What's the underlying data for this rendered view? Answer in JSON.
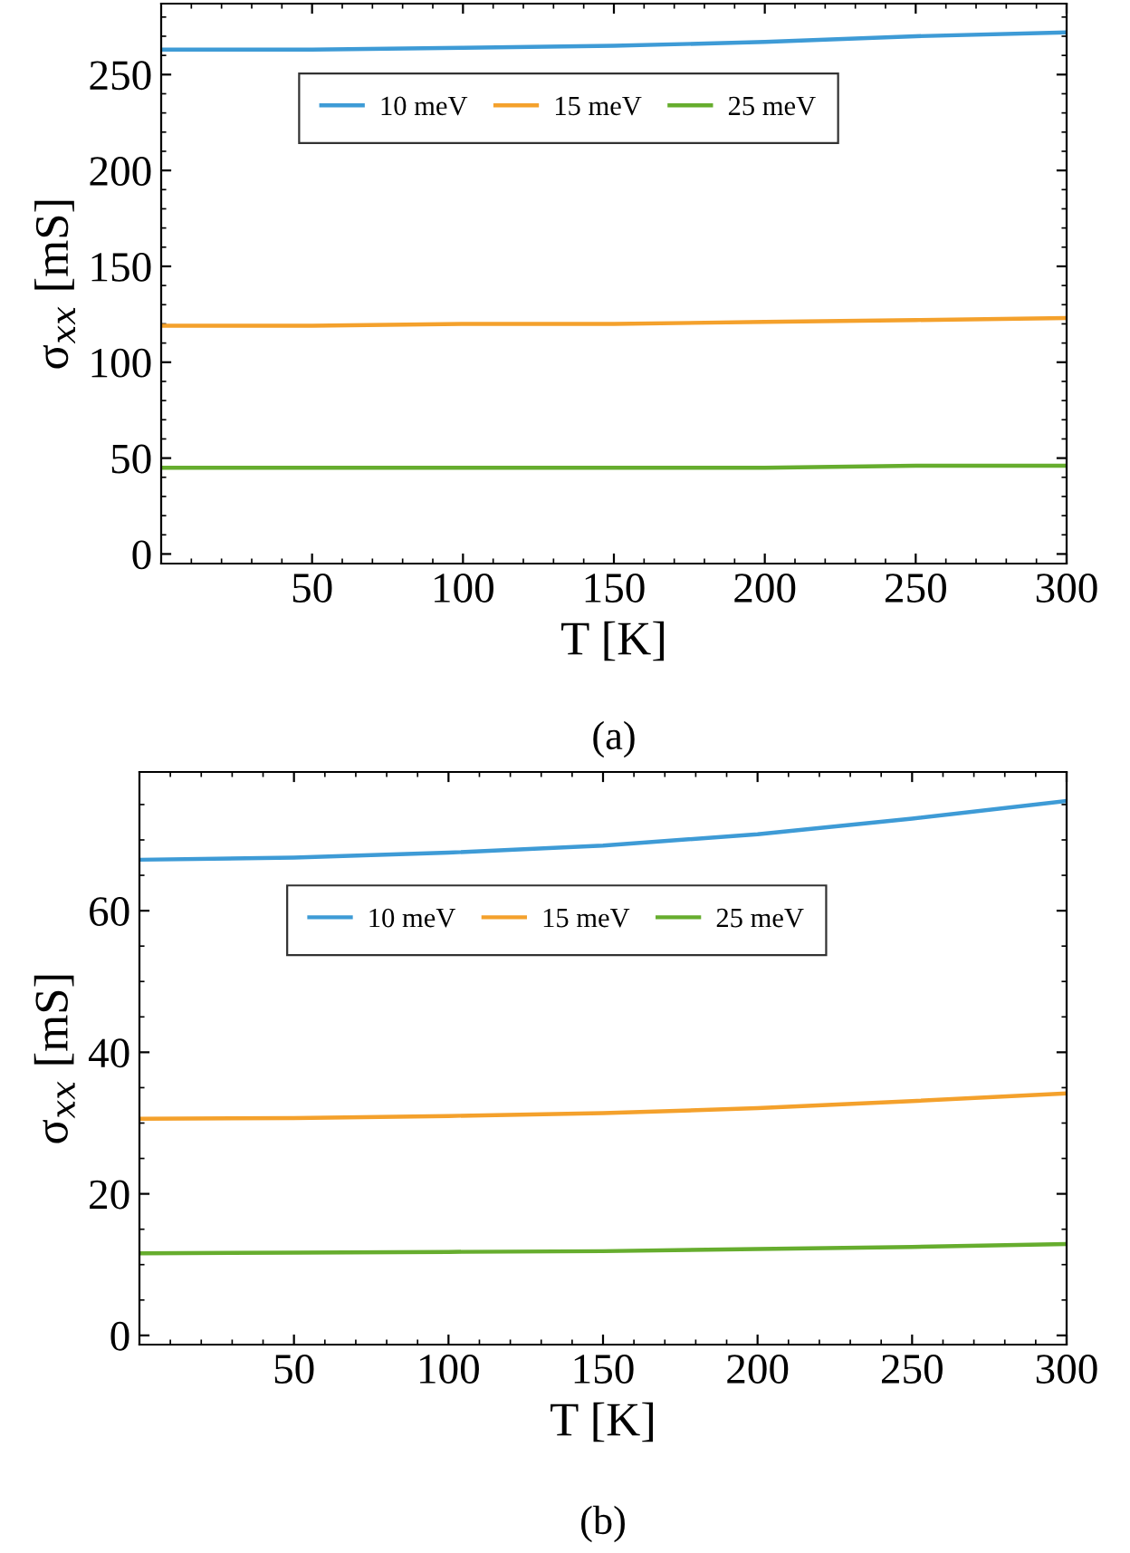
{
  "chart_data": [
    {
      "type": "line",
      "xlabel": "T [K]",
      "ylabel": "σ$_{xx}$ [mS]",
      "annotations": [
        "(a)"
      ],
      "xlim": [
        0,
        300
      ],
      "ylim": [
        -5,
        287
      ],
      "xticks": [
        50,
        100,
        150,
        200,
        250,
        300
      ],
      "yticks": [
        0,
        50,
        100,
        150,
        200,
        250
      ],
      "legend": "top",
      "grid": false,
      "x": [
        0,
        50,
        100,
        150,
        200,
        250,
        300
      ],
      "series": [
        {
          "name": "10 meV",
          "color": "#3e9bd6",
          "values": [
            263,
            263,
            264,
            265,
            267,
            270,
            272
          ]
        },
        {
          "name": "15 meV",
          "color": "#f4a12c",
          "values": [
            119,
            119,
            120,
            120,
            121,
            122,
            123
          ]
        },
        {
          "name": "25 meV",
          "color": "#66ad2e",
          "values": [
            45,
            45,
            45,
            45,
            45,
            46,
            46
          ]
        }
      ]
    },
    {
      "type": "line",
      "xlabel": "T [K]",
      "ylabel": "σ$_{xx}$ [mS]",
      "annotations": [
        "(b)"
      ],
      "xlim": [
        0,
        300
      ],
      "ylim": [
        -1.3,
        79.6
      ],
      "xticks": [
        50,
        100,
        150,
        200,
        250,
        300
      ],
      "yticks": [
        0,
        20,
        40,
        60
      ],
      "legend": "top",
      "grid": false,
      "x": [
        0,
        50,
        100,
        150,
        200,
        250,
        300
      ],
      "series": [
        {
          "name": "10 meV",
          "color": "#3e9bd6",
          "values": [
            67.2,
            67.5,
            68.2,
            69.2,
            70.8,
            73.0,
            75.5
          ]
        },
        {
          "name": "15 meV",
          "color": "#f4a12c",
          "values": [
            30.6,
            30.7,
            31.0,
            31.4,
            32.1,
            33.1,
            34.2
          ]
        },
        {
          "name": "25 meV",
          "color": "#66ad2e",
          "values": [
            11.6,
            11.7,
            11.8,
            11.9,
            12.2,
            12.5,
            12.9
          ]
        }
      ]
    }
  ]
}
